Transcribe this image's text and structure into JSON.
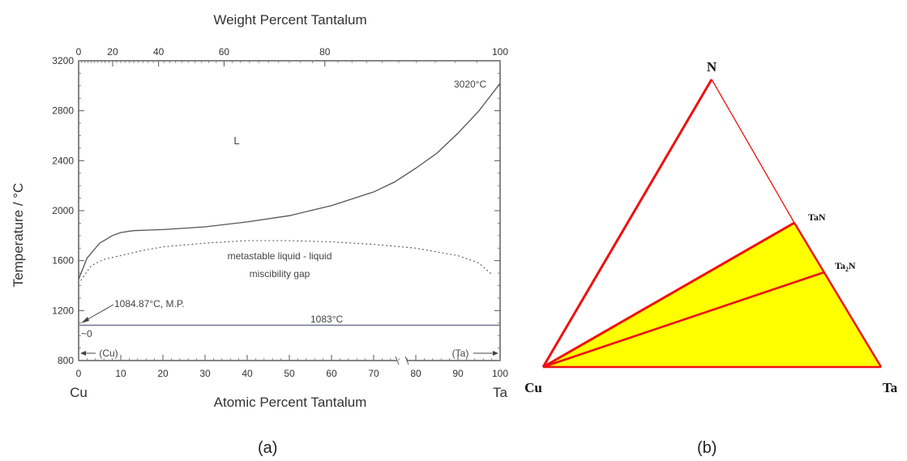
{
  "phase_diagram": {
    "top_axis_title": "Weight Percent Tantalum",
    "bottom_axis_title": "Atomic Percent Tantalum",
    "y_axis_title": "Temperature / °C",
    "left_element": "Cu",
    "right_element": "Ta",
    "region_label_liquid": "L",
    "gap_label_line1": "metastable liquid - liquid",
    "gap_label_line2": "miscibility gap",
    "annotation_cu_mp": "1084.87°C, M.P.",
    "annotation_zero": "~0",
    "annotation_eutectic": "1083°C",
    "annotation_ta_mp": "3020°C",
    "phase_cu": "(Cu)",
    "phase_ta": "(Ta)",
    "y_ticks": [
      "800",
      "1200",
      "1600",
      "2000",
      "2400",
      "2800",
      "3200"
    ],
    "bottom_ticks": [
      "0",
      "10",
      "20",
      "30",
      "40",
      "50",
      "60",
      "70",
      "80",
      "90",
      "100"
    ],
    "top_ticks": [
      "0",
      "20",
      "40",
      "60",
      "80",
      "100"
    ],
    "panel_label": "(a)"
  },
  "ternary": {
    "vertex_top": "N",
    "vertex_left": "Cu",
    "vertex_right": "Ta",
    "compound_1": "TaN",
    "compound_2_base": "Ta",
    "compound_2_sub": "2",
    "compound_2_end": "N",
    "fill_color": "#ffff00",
    "line_color": "#ee1111",
    "panel_label": "(b)"
  },
  "chart_data": {
    "type": "line",
    "xlabel": "Atomic Percent Tantalum",
    "x2label": "Weight Percent Tantalum",
    "ylabel": "Temperature / °C",
    "xlim": [
      0,
      100
    ],
    "ylim": [
      800,
      3200
    ],
    "series": [
      {
        "x": [
          0,
          2,
          5,
          8,
          10,
          13,
          17,
          20,
          30,
          40,
          50,
          60,
          70,
          75,
          80,
          85,
          90,
          95,
          100
        ],
        "y": [
          1450,
          1620,
          1740,
          1800,
          1825,
          1840,
          1845,
          1848,
          1870,
          1910,
          1960,
          2040,
          2150,
          2230,
          2340,
          2460,
          2620,
          2800,
          3020
        ]
      },
      {
        "x": [
          0.5,
          3,
          6,
          10,
          15,
          20,
          30,
          40,
          50,
          60,
          70,
          80,
          90,
          95,
          98
        ],
        "y": [
          1440,
          1560,
          1610,
          1640,
          1680,
          1710,
          1740,
          1760,
          1760,
          1750,
          1730,
          1700,
          1640,
          1580,
          1490
        ]
      },
      {
        "x": [
          0,
          100
        ],
        "y": [
          1083,
          1083
        ]
      }
    ]
  }
}
